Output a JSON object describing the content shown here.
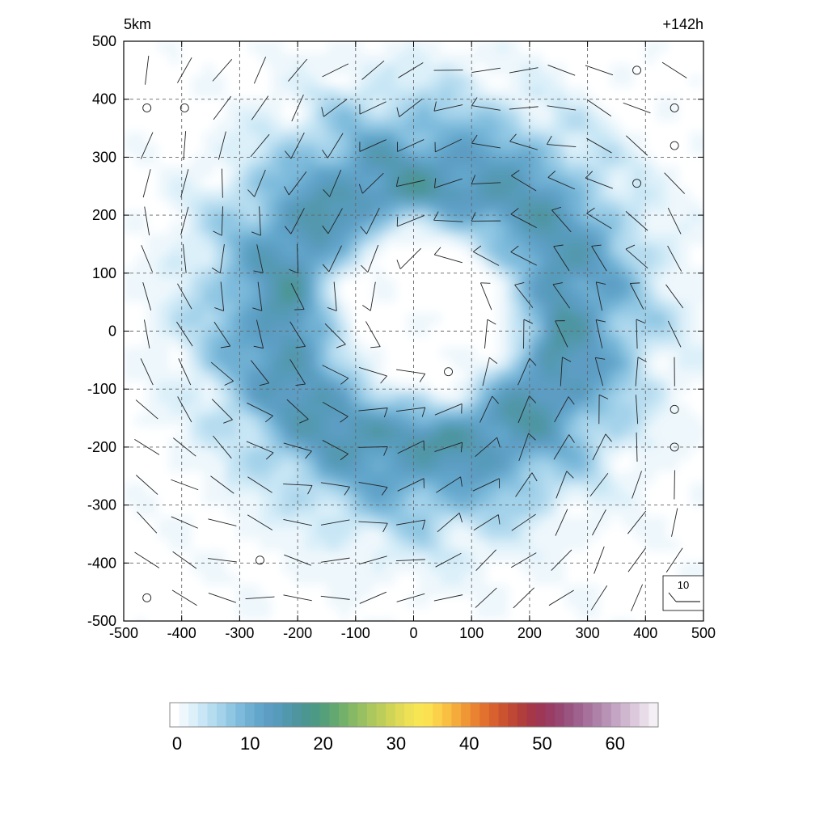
{
  "chart_data": {
    "type": "heatmap",
    "title_left": "5km",
    "title_right": "+142h",
    "xlim": [
      -500,
      500
    ],
    "ylim": [
      -500,
      500
    ],
    "x_ticks": [
      -500,
      -400,
      -300,
      -200,
      -100,
      0,
      100,
      200,
      300,
      400,
      500
    ],
    "y_ticks": [
      -500,
      -400,
      -300,
      -200,
      -100,
      0,
      100,
      200,
      300,
      400,
      500
    ],
    "x_tick_labels": [
      "-500",
      "-400",
      "-300",
      "-200",
      "-100",
      "0",
      "100",
      "200",
      "300",
      "400",
      "500"
    ],
    "y_tick_labels": [
      "-500",
      "-400",
      "-300",
      "-200",
      "-100",
      "0",
      "100",
      "200",
      "300",
      "400",
      "500"
    ],
    "grid": true,
    "field": {
      "description": "annular ring of shaded values centred near (0,0)",
      "ring_center": [
        20,
        30
      ],
      "ring_peak_radius": 220,
      "ring_peak_value": 15,
      "eye_radius": 120
    },
    "wind_reference": {
      "value": "10",
      "position": "bottom-right"
    },
    "calm_markers": [
      {
        "x": -460,
        "y": 385
      },
      {
        "x": -395,
        "y": 385
      },
      {
        "x": 385,
        "y": 450
      },
      {
        "x": 450,
        "y": 385
      },
      {
        "x": 450,
        "y": 320
      },
      {
        "x": 385,
        "y": 255
      },
      {
        "x": 60,
        "y": -70
      },
      {
        "x": 450,
        "y": -135
      },
      {
        "x": 450,
        "y": -200
      },
      {
        "x": -265,
        "y": -395
      },
      {
        "x": -460,
        "y": -460
      }
    ],
    "colorbar": {
      "min": 0,
      "max": 65,
      "ticks": [
        0,
        10,
        20,
        30,
        40,
        50,
        60
      ],
      "tick_labels": [
        "0",
        "10",
        "20",
        "30",
        "40",
        "50",
        "60"
      ],
      "colors": [
        "#ffffff",
        "#eef7fc",
        "#dcf0f9",
        "#c8e6f5",
        "#b6dcef",
        "#a3d2ea",
        "#8fc6e2",
        "#7dbadb",
        "#6eafd2",
        "#62a6cb",
        "#5d9dc4",
        "#579bba",
        "#5298ad",
        "#4e95a0",
        "#4c9691",
        "#4d9a84",
        "#55a07a",
        "#63a871",
        "#73b06a",
        "#86b866",
        "#98c062",
        "#abc75e",
        "#bdcd5a",
        "#cfd457",
        "#e0da56",
        "#efe155",
        "#f8e554",
        "#fbe052",
        "#fbd04a",
        "#f9bf43",
        "#f5ab3b",
        "#f09735",
        "#ea8331",
        "#e2712f",
        "#d8612f",
        "#cc5330",
        "#bf4735",
        "#b23e3c",
        "#a63748",
        "#9e3755",
        "#9a3d64",
        "#984772",
        "#9a5480",
        "#9f628e",
        "#a6719b",
        "#ae82a8",
        "#b893b6",
        "#c4a5c3",
        "#d0b7d0",
        "#dccadc",
        "#e8dce8",
        "#f3eff5"
      ]
    }
  }
}
